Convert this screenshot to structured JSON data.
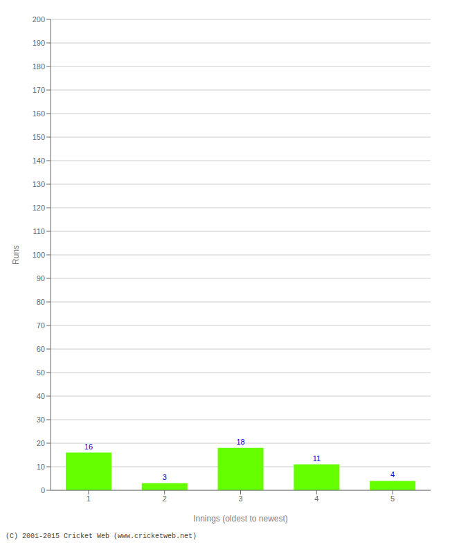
{
  "chart_data": {
    "type": "bar",
    "categories": [
      "1",
      "2",
      "3",
      "4",
      "5"
    ],
    "values": [
      16,
      3,
      18,
      11,
      4
    ],
    "color": "#66ff00",
    "xlabel": "Innings (oldest to newest)",
    "ylabel": "Runs",
    "ylim": [
      0,
      200
    ],
    "yticks": [
      0,
      10,
      20,
      30,
      40,
      50,
      60,
      70,
      80,
      90,
      100,
      110,
      120,
      130,
      140,
      150,
      160,
      170,
      180,
      190,
      200
    ],
    "grid": true,
    "data_labels": true,
    "annotations": [
      "(C) 2001-2015 Cricket Web (www.cricketweb.net)"
    ]
  }
}
